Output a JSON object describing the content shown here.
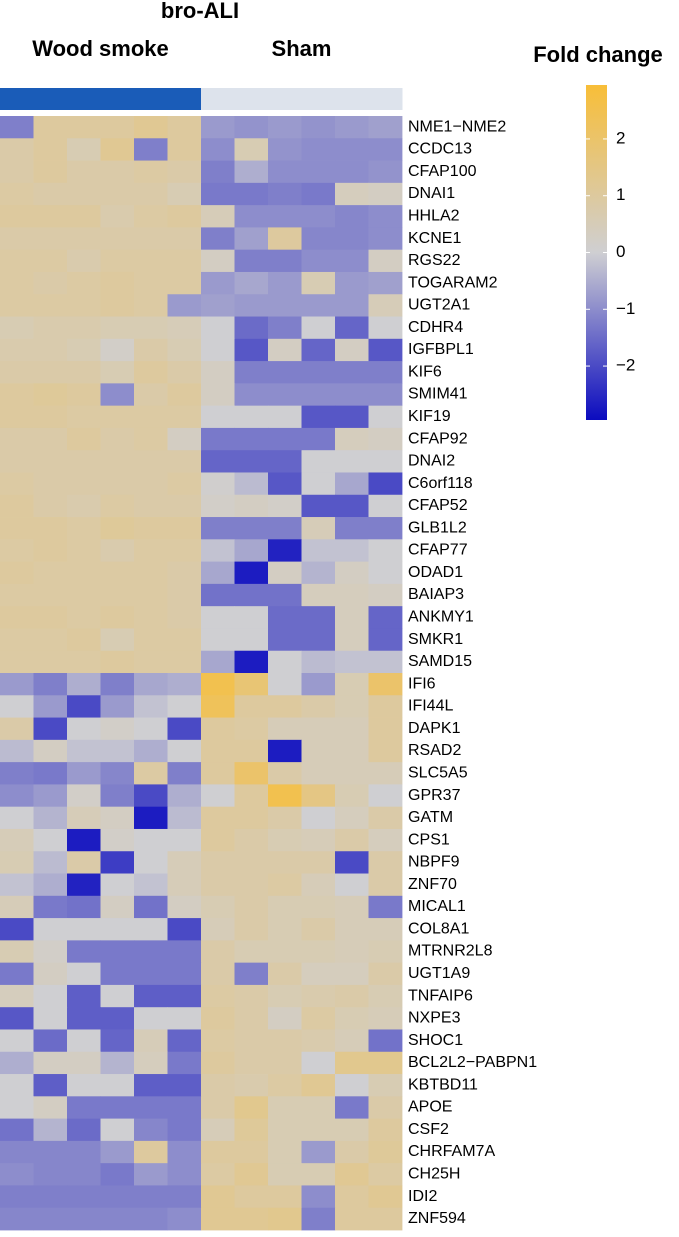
{
  "chart_data": {
    "type": "heatmap",
    "title": "bro-ALI",
    "groups": [
      {
        "name": "Wood smoke",
        "color": "#1a5cb8"
      },
      {
        "name": "Sham",
        "color": "#dde3ec"
      }
    ],
    "column_groups": [
      "Wood smoke",
      "Wood smoke",
      "Wood smoke",
      "Wood smoke",
      "Wood smoke",
      "Wood smoke",
      "Sham",
      "Sham",
      "Sham",
      "Sham",
      "Sham",
      "Sham"
    ],
    "rows": [
      "NME1−NME2",
      "CCDC13",
      "CFAP100",
      "DNAI1",
      "HHLA2",
      "KCNE1",
      "RGS22",
      "TOGARAM2",
      "UGT2A1",
      "CDHR4",
      "IGFBPL1",
      "KIF6",
      "SMIM41",
      "KIF19",
      "CFAP92",
      "DNAI2",
      "C6orf118",
      "CFAP52",
      "GLB1L2",
      "CFAP77",
      "ODAD1",
      "BAIAP3",
      "ANKMY1",
      "SMKR1",
      "SAMD15",
      "IFI6",
      "IFI44L",
      "DAPK1",
      "RSAD2",
      "SLC5A5",
      "GPR37",
      "GATM",
      "CPS1",
      "NBPF9",
      "ZNF70",
      "MICAL1",
      "COL8A1",
      "MTRNR2L8",
      "UGT1A9",
      "TNFAIP6",
      "NXPE3",
      "SHOC1",
      "BCL2L2−PABPN1",
      "KBTBD11",
      "APOE",
      "CSF2",
      "CHRFAM7A",
      "CH25H",
      "IDI2",
      "ZNF594"
    ],
    "values": [
      [
        -1.2,
        1,
        1,
        1,
        1.2,
        1,
        -0.8,
        -0.9,
        -0.8,
        -0.9,
        -0.8,
        -0.7
      ],
      [
        0.8,
        1,
        0.6,
        1.2,
        -1.2,
        1,
        -1,
        0.6,
        -0.9,
        -1,
        -1,
        -1
      ],
      [
        0.8,
        1,
        0.8,
        0.8,
        0.9,
        0.8,
        -1.2,
        -0.5,
        -1,
        -1,
        -1,
        -0.9
      ],
      [
        0.9,
        0.8,
        0.8,
        0.8,
        0.8,
        0.6,
        -1.3,
        -1.3,
        -1.2,
        -1.3,
        0.4,
        0.3
      ],
      [
        1,
        1,
        1,
        0.7,
        0.9,
        1,
        0.5,
        -1,
        -1,
        -1,
        -1.1,
        -1
      ],
      [
        0.8,
        0.8,
        0.8,
        0.8,
        0.8,
        0.8,
        -1.2,
        -0.7,
        1,
        -1.1,
        -1.1,
        -1
      ],
      [
        0.9,
        0.9,
        0.7,
        0.9,
        0.9,
        0.9,
        0.3,
        -1.2,
        -1.2,
        -1,
        -1,
        0.3
      ],
      [
        0.9,
        0.8,
        0.9,
        1,
        0.9,
        0.9,
        -0.8,
        -0.6,
        -0.8,
        0.6,
        -0.8,
        -0.7
      ],
      [
        0.9,
        0.9,
        0.9,
        1,
        0.9,
        -0.8,
        -0.7,
        -0.8,
        -0.8,
        -0.8,
        -0.8,
        0.5
      ],
      [
        0.6,
        0.7,
        0.7,
        0.6,
        0.6,
        0.5,
        0,
        -1.5,
        -1.2,
        0,
        -1.6,
        0
      ],
      [
        0.7,
        0.7,
        0.6,
        0.2,
        0.8,
        0.6,
        0,
        -1.8,
        0.3,
        -1.6,
        0.3,
        -1.8
      ],
      [
        0.8,
        0.8,
        0.8,
        0.6,
        1,
        0.8,
        0.3,
        -1.2,
        -1.2,
        -1.2,
        -1.2,
        -1.2
      ],
      [
        1,
        1.1,
        1,
        -1,
        0.8,
        1,
        0.3,
        -1,
        -1,
        -1,
        -1,
        -1
      ],
      [
        1,
        1,
        0.9,
        0.9,
        0.9,
        0.9,
        0,
        0,
        0,
        -1.8,
        -1.8,
        0
      ],
      [
        0.8,
        0.8,
        1,
        0.8,
        0.9,
        0.3,
        -1.3,
        -1.3,
        -1.3,
        -1.3,
        0.4,
        0.3
      ],
      [
        0.8,
        0.8,
        0.8,
        0.8,
        0.8,
        0.8,
        -1.6,
        -1.6,
        -1.6,
        0,
        0,
        0
      ],
      [
        0.9,
        0.8,
        0.8,
        0.8,
        0.8,
        0.9,
        0.1,
        -0.3,
        -1.8,
        0,
        -0.6,
        -2
      ],
      [
        1,
        0.8,
        0.7,
        0.9,
        0.8,
        0.8,
        0.2,
        0.3,
        0.2,
        -1.8,
        -1.8,
        0
      ],
      [
        1,
        1,
        0.9,
        1.1,
        1,
        1,
        -1.2,
        -1.2,
        -1.2,
        0.5,
        -1.2,
        -1.2
      ],
      [
        0.9,
        1,
        0.9,
        0.7,
        0.9,
        0.9,
        -0.2,
        -0.6,
        -2.6,
        -0.2,
        -0.2,
        0
      ],
      [
        1,
        0.9,
        0.9,
        0.9,
        0.9,
        0.8,
        -0.6,
        -2.7,
        0.3,
        -0.4,
        0.3,
        0
      ],
      [
        0.9,
        0.9,
        0.9,
        0.9,
        0.9,
        0.8,
        -1.4,
        -1.4,
        -1.4,
        0.4,
        0.4,
        0.3
      ],
      [
        1,
        1,
        0.9,
        1,
        0.9,
        0.8,
        0,
        0,
        -1.5,
        -1.5,
        0.4,
        -1.6
      ],
      [
        0.9,
        0.9,
        1,
        0.6,
        0.9,
        0.9,
        0,
        0,
        -1.5,
        -1.5,
        0.4,
        -1.6
      ],
      [
        0.9,
        0.9,
        0.9,
        1,
        0.9,
        0.9,
        -0.6,
        -2.7,
        0,
        -0.3,
        -0.2,
        -0.2
      ],
      [
        -0.8,
        -1.2,
        -0.5,
        -1.2,
        -0.6,
        -0.5,
        2.5,
        1.8,
        0,
        -0.8,
        0.6,
        2
      ],
      [
        0,
        -0.8,
        -2,
        -0.8,
        -0.2,
        0,
        2.3,
        1,
        1,
        0.8,
        0.6,
        1
      ],
      [
        0.8,
        -2,
        0,
        0.2,
        0,
        -2,
        1,
        0.9,
        0.5,
        0.5,
        0.5,
        1
      ],
      [
        -0.3,
        0.3,
        -0.2,
        -0.2,
        -0.5,
        0,
        1,
        1,
        -2.7,
        0.5,
        0.5,
        1
      ],
      [
        -1.2,
        -1.3,
        -0.8,
        -1.1,
        0.9,
        -1.2,
        1,
        2,
        0.8,
        0.5,
        0.5,
        0.5
      ],
      [
        -1,
        -0.8,
        0.2,
        -1.2,
        -2,
        -0.5,
        0,
        1,
        2.5,
        1.5,
        0.6,
        0
      ],
      [
        0,
        -0.4,
        0.5,
        0.3,
        -2.7,
        -0.3,
        1,
        1,
        0.8,
        0,
        0.4,
        0.8
      ],
      [
        0.5,
        0,
        -2.7,
        0.2,
        0,
        0,
        1,
        0.8,
        0.6,
        0.5,
        0.8,
        0.4
      ],
      [
        0.6,
        -0.3,
        0.8,
        -2.2,
        0,
        0.5,
        0.8,
        0.8,
        0.8,
        0.8,
        -2,
        0.8
      ],
      [
        -0.2,
        -0.5,
        -2.6,
        0,
        -0.2,
        0.5,
        0.8,
        0.8,
        0.9,
        0.5,
        0,
        0.8
      ],
      [
        0.5,
        -1.3,
        -1.4,
        0.3,
        -1.4,
        0.3,
        0.6,
        0.8,
        0.6,
        0.6,
        0.5,
        -1.3
      ],
      [
        -2,
        0,
        0,
        0,
        0,
        -2,
        0.5,
        0.8,
        0.6,
        0.8,
        0.5,
        0.5
      ],
      [
        0.6,
        0.2,
        -1.3,
        -1.3,
        -1.3,
        -1.3,
        0.8,
        0.6,
        0.6,
        0.6,
        0.5,
        0.6
      ],
      [
        -1.3,
        0.3,
        0,
        -1.3,
        -1.3,
        -1.3,
        0.8,
        -1.2,
        0.8,
        0.4,
        0.4,
        0.8
      ],
      [
        0.4,
        0,
        -1.7,
        0,
        -1.7,
        -1.7,
        0.9,
        0.8,
        0.6,
        0.7,
        0.8,
        0.6
      ],
      [
        -1.8,
        0,
        -1.7,
        -1.7,
        0,
        0,
        1,
        0.8,
        0.3,
        0.9,
        0.6,
        0.5
      ],
      [
        0,
        -1.5,
        0,
        -1.6,
        0.5,
        -1.6,
        0.9,
        0.8,
        0.8,
        0.7,
        0.5,
        -1.4
      ],
      [
        -0.5,
        0.3,
        0.3,
        -0.4,
        0.4,
        -1.3,
        1,
        0.8,
        0.8,
        0,
        1.3,
        1.3
      ],
      [
        0,
        -1.7,
        0,
        0,
        -1.7,
        -1.7,
        0.8,
        0.7,
        0.9,
        1.2,
        0,
        0.6
      ],
      [
        0,
        0.3,
        -1.3,
        -1.3,
        -1.3,
        -1.3,
        0.8,
        1.3,
        0.6,
        0.6,
        -1.3,
        0.8
      ],
      [
        -1.4,
        -0.4,
        -1.5,
        0,
        -1.1,
        -1.3,
        0.5,
        1.1,
        0.6,
        0.6,
        0.6,
        1
      ],
      [
        -1.1,
        -1.1,
        -1.1,
        -0.8,
        1,
        -1,
        1,
        1,
        0.6,
        -0.8,
        0.8,
        1.1
      ],
      [
        -1,
        -1.1,
        -1.1,
        -1.3,
        -0.8,
        -1,
        0.9,
        1.2,
        0.6,
        0.6,
        1.2,
        0.9
      ],
      [
        -1.2,
        -1.2,
        -1.2,
        -1.2,
        -1.2,
        -1.2,
        1.2,
        1,
        1,
        -1,
        1,
        1.2
      ],
      [
        -1.1,
        -1.1,
        -1.1,
        -1.1,
        -1.1,
        -1,
        1.2,
        1.2,
        1.3,
        -1.2,
        1,
        1
      ]
    ],
    "colorbar": {
      "title": "Fold change",
      "lim": [
        -2.95,
        2.95
      ],
      "ticks": [
        {
          "value": -2,
          "label": "−2"
        },
        {
          "value": -1,
          "label": "−1"
        },
        0,
        1,
        2
      ],
      "colors": [
        "#0b0bbf",
        "#cfcfd2",
        "#f8be38"
      ]
    }
  }
}
